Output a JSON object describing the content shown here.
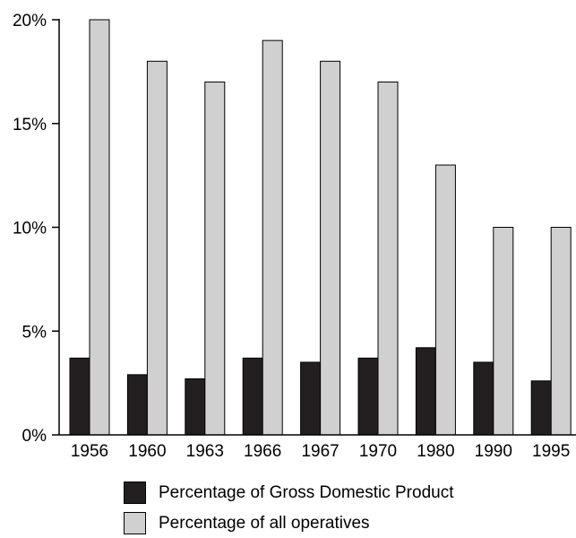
{
  "chart_data": {
    "type": "bar",
    "categories": [
      "1956",
      "1960",
      "1963",
      "1966",
      "1967",
      "1970",
      "1980",
      "1990",
      "1995"
    ],
    "series": [
      {
        "name": "Percentage of Gross Domestic Product",
        "values": [
          3.7,
          2.9,
          2.7,
          3.7,
          3.5,
          3.7,
          4.2,
          3.5,
          2.6
        ],
        "color": "#231f20"
      },
      {
        "name": "Percentage of all operatives",
        "values": [
          20,
          18,
          17,
          19,
          18,
          17,
          13,
          10,
          10
        ],
        "color": "#d0d0d0"
      }
    ],
    "y_ticks": [
      0,
      5,
      10,
      15,
      20
    ],
    "y_tick_labels": [
      "0%",
      "5%",
      "10%",
      "15%",
      "20%"
    ],
    "ylim": [
      0,
      20
    ],
    "grid": false,
    "legend_position": "bottom"
  }
}
